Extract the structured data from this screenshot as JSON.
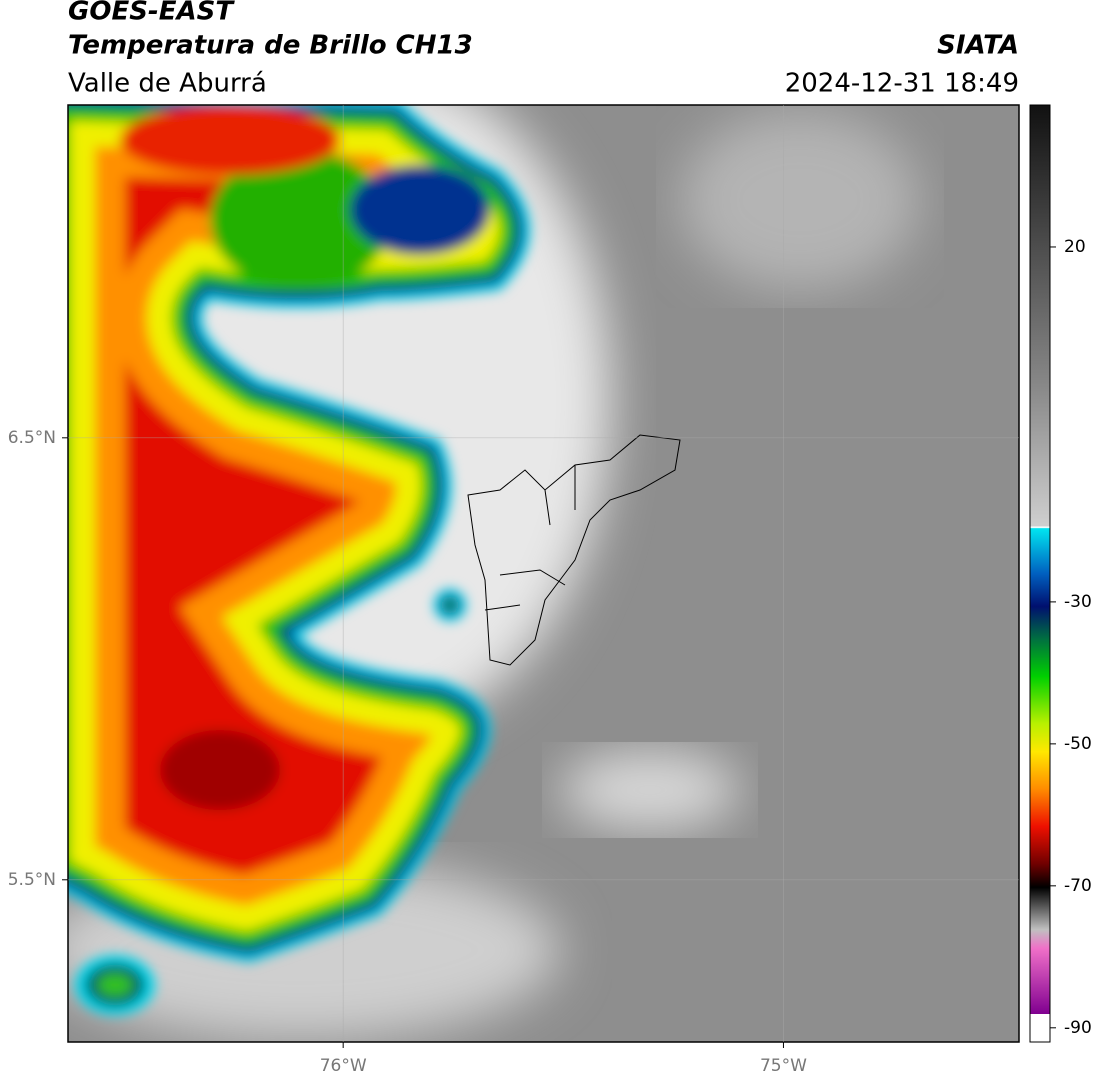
{
  "header": {
    "title": "GOES-EAST",
    "subtitle": "Temperatura de Brillo CH13",
    "region": "Valle de Aburrá",
    "source": "SIATA",
    "datetime": "2024-12-31 18:49"
  },
  "map": {
    "xlim": [
      -76.625,
      -74.465
    ],
    "ylim": [
      5.133,
      7.253
    ],
    "xticks": [
      {
        "value": -76,
        "label": "76°W"
      },
      {
        "value": -75,
        "label": "75°W"
      }
    ],
    "yticks": [
      {
        "value": 6.5,
        "label": "6.5°N"
      },
      {
        "value": 5.5,
        "label": "5.5°N"
      }
    ],
    "grid": true
  },
  "colorbar": {
    "lim": [
      -92,
      40
    ],
    "ticks": [
      20,
      -30,
      -50,
      -70,
      -90
    ]
  }
}
